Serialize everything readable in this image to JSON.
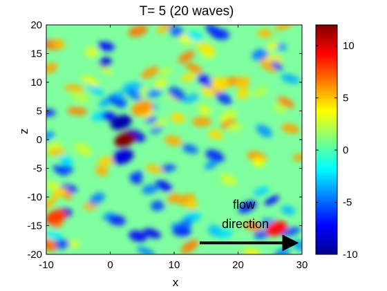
{
  "chart_data": {
    "type": "heatmap",
    "title": "T= 5   (20 waves)",
    "xlabel": "x",
    "ylabel": "z",
    "xlim": [
      -10,
      30
    ],
    "ylim": [
      -20,
      20
    ],
    "x_ticks": [
      -10,
      0,
      10,
      20,
      30
    ],
    "y_ticks": [
      -20,
      -15,
      -10,
      -5,
      0,
      5,
      10,
      15,
      20
    ],
    "colorbar": {
      "range": [
        -10,
        12
      ],
      "ticks": [
        -10,
        -5,
        0,
        5,
        10
      ],
      "colormap": "jet"
    },
    "grid": false,
    "annotation": {
      "text_line1": "flow",
      "text_line2": "direction",
      "arrow_from": [
        14,
        -18
      ],
      "arrow_to": [
        29,
        -18
      ]
    },
    "features": [
      {
        "x": 2.3,
        "z": 0.0,
        "value": 12
      },
      {
        "x": 1.7,
        "z": 3.0,
        "value": -9
      },
      {
        "x": 2.0,
        "z": -3.0,
        "value": -8
      },
      {
        "x": 5.0,
        "z": 5.5,
        "value": 6
      },
      {
        "x": -8.5,
        "z": -13.5,
        "value": 8
      },
      {
        "x": 26.0,
        "z": -15.5,
        "value": 9
      }
    ]
  }
}
